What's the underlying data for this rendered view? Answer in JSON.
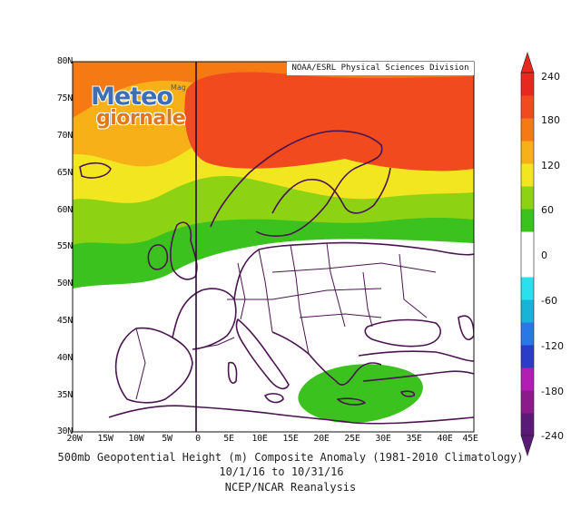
{
  "credit": "NOAA/ESRL Physical Sciences Division",
  "logo": {
    "word1": "Meteo",
    "word2": "giornale",
    "superscript": "Mag"
  },
  "caption": {
    "line1": "500mb Geopotential Height (m) Composite Anomaly (1981-2010 Climatology)",
    "line2": "10/1/16  to 10/31/16",
    "line3": "NCEP/NCAR Reanalysis"
  },
  "lat_labels": [
    "80N",
    "75N",
    "70N",
    "65N",
    "60N",
    "55N",
    "50N",
    "45N",
    "40N",
    "35N",
    "30N"
  ],
  "lon_labels": [
    "20W",
    "15W",
    "10W",
    "5W",
    "0",
    "5E",
    "10E",
    "15E",
    "20E",
    "25E",
    "30E",
    "35E",
    "40E",
    "45E"
  ],
  "colorbar": {
    "labels": [
      "240",
      "180",
      "120",
      "60",
      "0",
      "-60",
      "-120",
      "-180",
      "-240"
    ],
    "colors": [
      "#5b1a78",
      "#8b1a8b",
      "#b01eb4",
      "#2a3cc8",
      "#2a78e6",
      "#17b4d8",
      "#2ae0ec",
      "#ffffff",
      "#ffffff",
      "#3cc21e",
      "#8ed214",
      "#f2e620",
      "#f8b018",
      "#f57a14",
      "#f04a1e",
      "#e8281e"
    ]
  },
  "map": {
    "land_color": "#ffffff",
    "border_color": "#4a1450",
    "zero_meridian": "0"
  }
}
